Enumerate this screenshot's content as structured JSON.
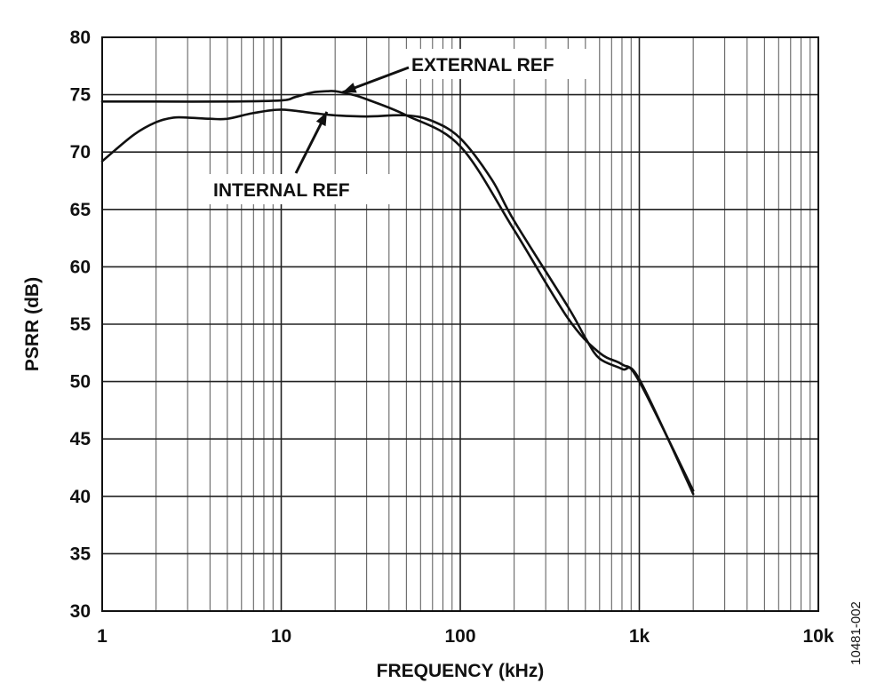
{
  "chart_data": {
    "type": "line",
    "xscale": "log",
    "xlim": [
      1,
      10000
    ],
    "ylim": [
      30,
      80
    ],
    "xlabel": "FREQUENCY (kHz)",
    "ylabel": "PSRR (dB)",
    "grid": true,
    "xticks": [
      1,
      10,
      100,
      1000,
      10000
    ],
    "xtick_labels": [
      "1",
      "10",
      "100",
      "1k",
      "10k"
    ],
    "yticks": [
      30,
      35,
      40,
      45,
      50,
      55,
      60,
      65,
      70,
      75,
      80
    ],
    "ytick_labels": [
      "30",
      "35",
      "40",
      "45",
      "50",
      "55",
      "60",
      "65",
      "70",
      "75",
      "80"
    ],
    "series": [
      {
        "name": "EXTERNAL REF",
        "x": [
          1,
          2,
          5,
          10,
          12,
          15,
          18,
          20,
          25,
          30,
          50,
          100,
          200,
          400,
          600,
          800,
          1000,
          2000
        ],
        "y": [
          74.4,
          74.4,
          74.4,
          74.5,
          74.8,
          75.2,
          75.3,
          75.3,
          75,
          74.6,
          73.2,
          70.5,
          63.2,
          55.5,
          52.5,
          51.5,
          50,
          40.5
        ]
      },
      {
        "name": "INTERNAL REF",
        "x": [
          1,
          1.5,
          2,
          2.5,
          3,
          4,
          5,
          7,
          10,
          15,
          20,
          30,
          50,
          70,
          100,
          150,
          200,
          400,
          500,
          600,
          800,
          1000,
          2000
        ],
        "y": [
          69.2,
          71.5,
          72.6,
          73,
          73,
          72.9,
          72.9,
          73.4,
          73.7,
          73.4,
          73.2,
          73.1,
          73.2,
          72.7,
          71.2,
          67.6,
          64,
          56.5,
          53.8,
          52,
          51.1,
          50.2,
          40.2
        ]
      }
    ],
    "annotations": [
      {
        "text": "EXTERNAL REF",
        "points_to": {
          "x": 22,
          "y": 75.2
        }
      },
      {
        "text": "INTERNAL REF",
        "points_to": {
          "x": 18,
          "y": 73.5
        }
      }
    ],
    "figure_id": "10481-002"
  }
}
